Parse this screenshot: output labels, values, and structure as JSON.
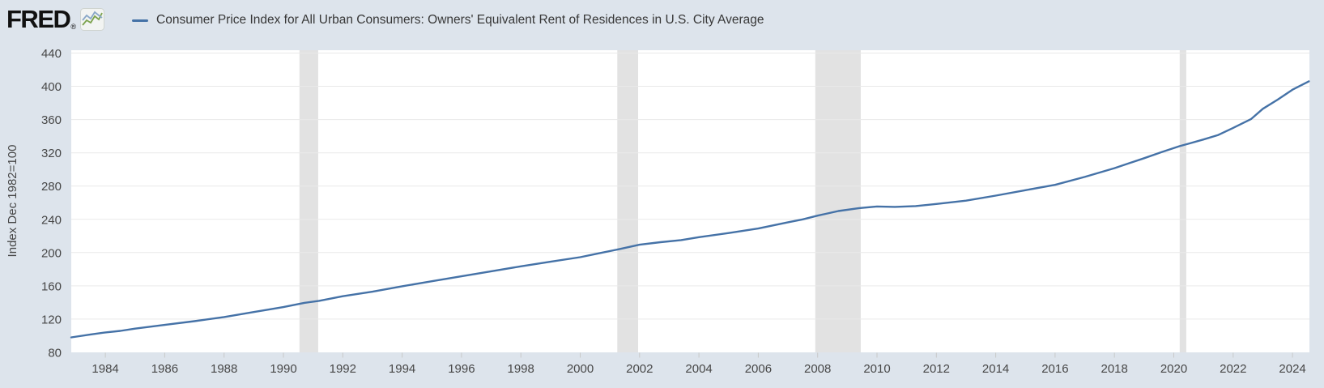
{
  "page": {
    "background": "#dde4ec"
  },
  "header": {
    "logo_text": "FRED",
    "logo_registered_mark": "®",
    "legend": {
      "label": "Consumer Price Index for All Urban Consumers: Owners' Equivalent Rent of Residences in U.S. City Average"
    }
  },
  "chart_data": {
    "type": "line",
    "title": "",
    "xlabel": "",
    "ylabel": "Index Dec 1982=100",
    "legend_position": "top",
    "grid": "horizontal",
    "plot_bg": "#ffffff",
    "grid_color": "#e9e9e9",
    "band_color": "#e2e2e2",
    "tick_text_color": "#474747",
    "tick_mark_color": "#c9c9c9",
    "xlim": [
      1982.85,
      2024.57
    ],
    "ylim": [
      80,
      443.4
    ],
    "x_ticks": [
      1984,
      1986,
      1988,
      1990,
      1992,
      1994,
      1996,
      1998,
      2000,
      2002,
      2004,
      2006,
      2008,
      2010,
      2012,
      2014,
      2016,
      2018,
      2020,
      2022,
      2024
    ],
    "y_ticks": [
      80,
      120,
      160,
      200,
      240,
      280,
      320,
      360,
      400,
      440
    ],
    "recession_bands": [
      [
        1990.54,
        1991.17
      ],
      [
        2001.25,
        2001.95
      ],
      [
        2007.92,
        2009.45
      ],
      [
        2020.2,
        2020.42
      ]
    ],
    "series": [
      {
        "name": "Consumer Price Index for All Urban Consumers: Owners' Equivalent Rent of Residences in U.S. City Average",
        "color": "#4572a7",
        "units": "Index Dec 1982=100",
        "points": [
          [
            1982.85,
            98
          ],
          [
            1983.5,
            101.5
          ],
          [
            1984,
            104
          ],
          [
            1984.5,
            105.8
          ],
          [
            1985,
            108.5
          ],
          [
            1986,
            113
          ],
          [
            1987,
            117.5
          ],
          [
            1988,
            122.5
          ],
          [
            1989,
            128.5
          ],
          [
            1990,
            134.5
          ],
          [
            1990.7,
            139.5
          ],
          [
            1991.2,
            142
          ],
          [
            1992,
            147.5
          ],
          [
            1993,
            153
          ],
          [
            1994,
            159.5
          ],
          [
            1995,
            165.5
          ],
          [
            1996,
            171.5
          ],
          [
            1997,
            177.5
          ],
          [
            1998,
            183.5
          ],
          [
            1999,
            189
          ],
          [
            2000,
            194.5
          ],
          [
            2000.6,
            199
          ],
          [
            2001.3,
            204
          ],
          [
            2002,
            209.5
          ],
          [
            2002.7,
            212.5
          ],
          [
            2003.4,
            215
          ],
          [
            2004,
            218.5
          ],
          [
            2005,
            223.5
          ],
          [
            2006,
            229
          ],
          [
            2007,
            236.5
          ],
          [
            2007.5,
            240
          ],
          [
            2008,
            244.5
          ],
          [
            2008.7,
            250
          ],
          [
            2009.4,
            253.5
          ],
          [
            2010,
            255.5
          ],
          [
            2010.6,
            255
          ],
          [
            2011.3,
            256
          ],
          [
            2012,
            258.5
          ],
          [
            2013,
            262.5
          ],
          [
            2014,
            268.5
          ],
          [
            2015,
            275
          ],
          [
            2016,
            281.5
          ],
          [
            2017,
            291
          ],
          [
            2018,
            301.5
          ],
          [
            2019,
            313.5
          ],
          [
            2019.6,
            321
          ],
          [
            2020.2,
            328
          ],
          [
            2020.5,
            331
          ],
          [
            2021,
            336
          ],
          [
            2021.5,
            341.5
          ],
          [
            2022,
            350
          ],
          [
            2022.6,
            360.5
          ],
          [
            2023,
            373
          ],
          [
            2023.5,
            384
          ],
          [
            2024,
            396
          ],
          [
            2024.55,
            406
          ]
        ]
      }
    ]
  }
}
